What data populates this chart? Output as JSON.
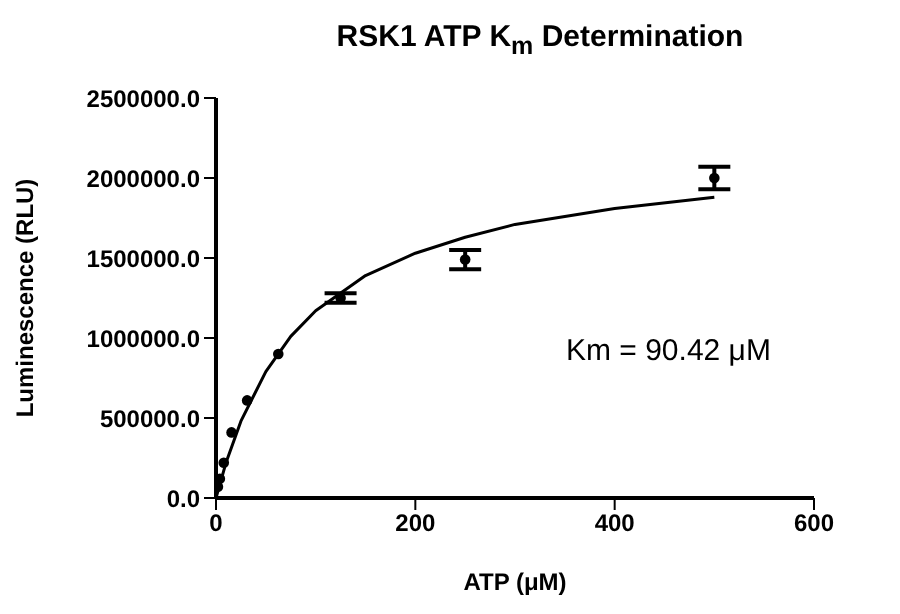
{
  "chart_data": {
    "type": "scatter",
    "title": "RSK1 ATP K$_{m}$ Determination",
    "xlabel": "ATP (μM)",
    "ylabel": "Luminescence (RLU)",
    "annotations": [
      "Km = 90.42 μM"
    ],
    "xlim": [
      0,
      600
    ],
    "xticks": [
      0,
      200,
      400,
      600
    ],
    "ylim": [
      0,
      2500000
    ],
    "yticks": [
      {
        "value": 0,
        "label": "0.0"
      },
      {
        "value": 500000,
        "label": "500000.0"
      },
      {
        "value": 1000000,
        "label": "1000000.0"
      },
      {
        "value": 1500000,
        "label": "1500000.0"
      },
      {
        "value": 2000000,
        "label": "2000000.0"
      },
      {
        "value": 2500000,
        "label": "2500000.0"
      }
    ],
    "series": [
      {
        "color": "#000000",
        "marker": "circle",
        "x": [
          1.95,
          3.9,
          7.8,
          15.6,
          31.25,
          62.5,
          125,
          250,
          500
        ],
        "values": [
          70000,
          120000,
          220000,
          410000,
          610000,
          900000,
          1250000,
          1490000,
          2000000
        ],
        "errors": [
          null,
          null,
          null,
          null,
          null,
          null,
          30000,
          60000,
          70000
        ]
      },
      {
        "type": "line",
        "color": "#000000",
        "marker": "none",
        "x": [
          0,
          10,
          25,
          50,
          75,
          100,
          150,
          200,
          250,
          300,
          400,
          500
        ],
        "values": [
          0,
          220000,
          480000,
          790000,
          1010000,
          1170000,
          1390000,
          1530000,
          1630000,
          1710000,
          1810000,
          1880000
        ]
      }
    ]
  }
}
